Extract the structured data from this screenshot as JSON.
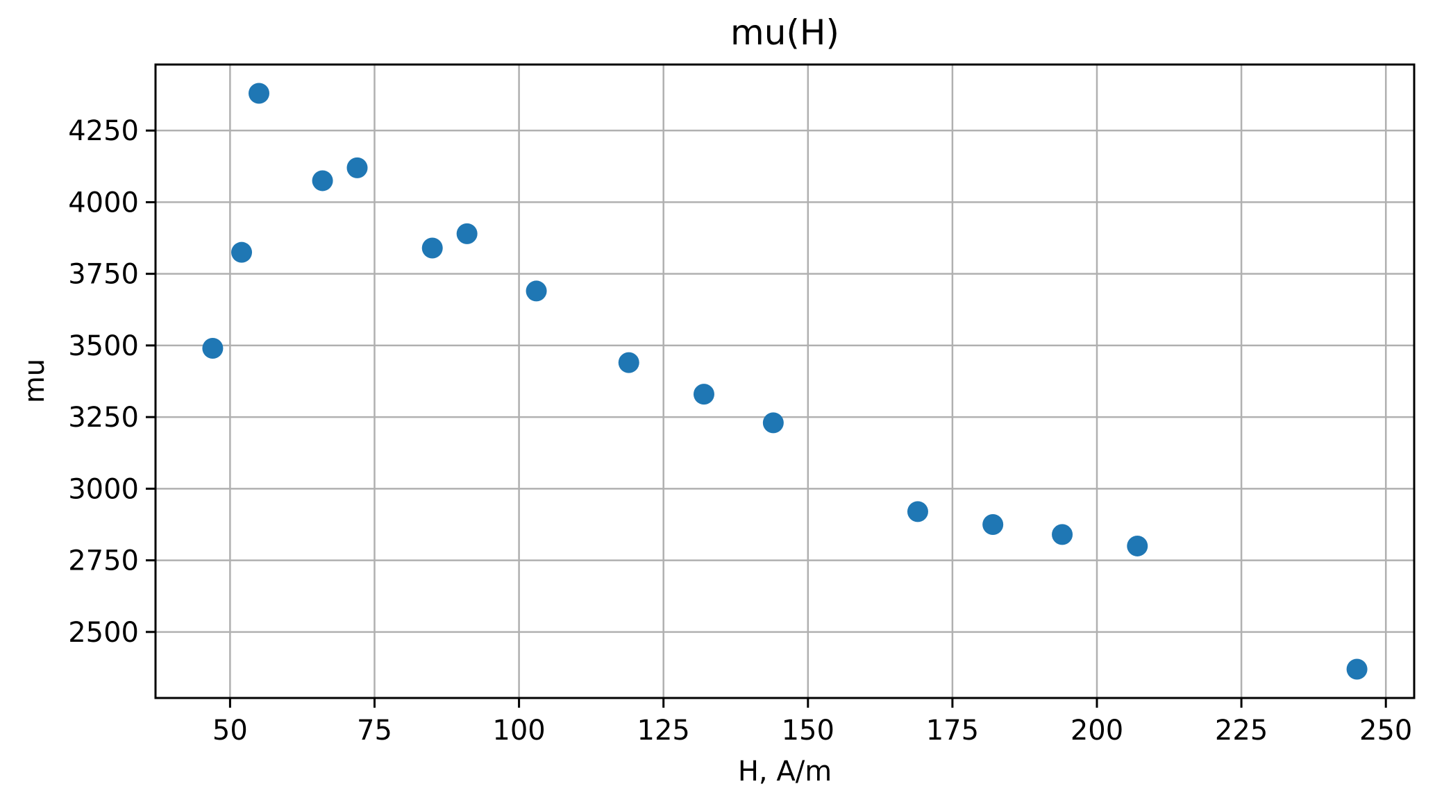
{
  "chart_data": {
    "type": "scatter",
    "title": "mu(H)",
    "xlabel": "H, A/m",
    "ylabel": "mu",
    "x": [
      47,
      52,
      55,
      66,
      72,
      85,
      91,
      103,
      119,
      132,
      144,
      169,
      182,
      194,
      207,
      245
    ],
    "y": [
      3490,
      3825,
      4380,
      4075,
      4120,
      3840,
      3890,
      3690,
      3440,
      3330,
      3230,
      2920,
      2875,
      2840,
      2800,
      2370
    ],
    "xticks": [
      50,
      75,
      100,
      125,
      150,
      175,
      200,
      225,
      250
    ],
    "yticks": [
      2500,
      2750,
      3000,
      3250,
      3500,
      3750,
      4000,
      4250
    ],
    "xlim": [
      37.1,
      254.9
    ],
    "ylim": [
      2269.5,
      4480.5
    ],
    "grid": true,
    "legend": false,
    "colors": {
      "marker": "#1f77b4",
      "grid": "#b0b0b0",
      "spine": "#000000",
      "text": "#000000"
    },
    "marker_radius": 15
  }
}
